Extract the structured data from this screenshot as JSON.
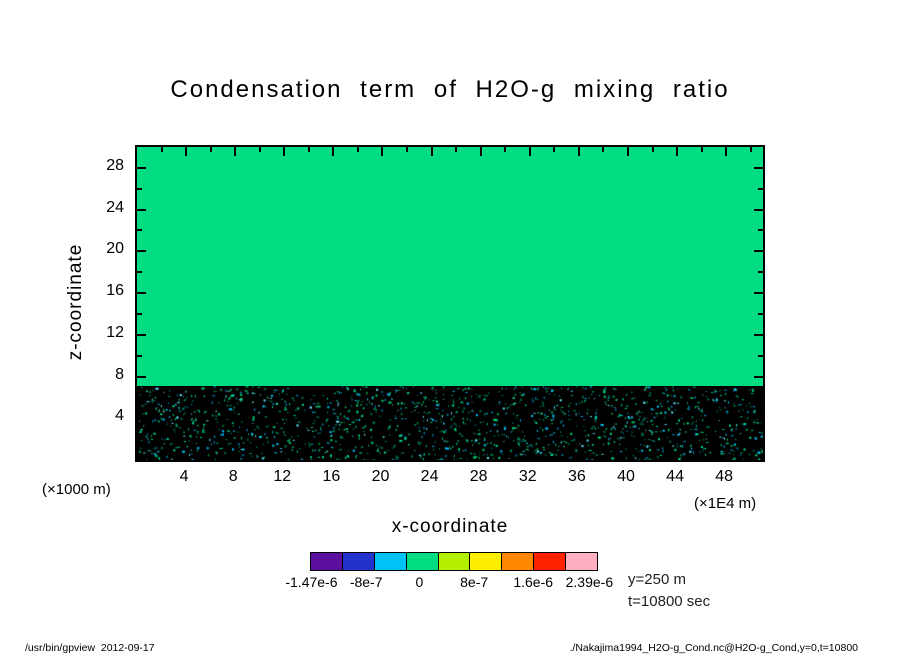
{
  "title": "Condensation term of H2O-g mixing ratio",
  "axes": {
    "x": {
      "label": "x-coordinate",
      "unit": "(×1E4 m)",
      "min": 0,
      "max": 51,
      "ticks": [
        2,
        4,
        6,
        8,
        10,
        12,
        14,
        16,
        18,
        20,
        22,
        24,
        26,
        28,
        30,
        32,
        34,
        36,
        38,
        40,
        42,
        44,
        46,
        48,
        50
      ],
      "labeled": [
        4,
        8,
        12,
        16,
        20,
        24,
        28,
        32,
        36,
        40,
        44,
        48
      ]
    },
    "y": {
      "label": "z-coordinate",
      "unit": "(×1000 m)",
      "min": 0,
      "max": 30,
      "ticks": [
        2,
        4,
        6,
        8,
        10,
        12,
        14,
        16,
        18,
        20,
        22,
        24,
        26,
        28
      ],
      "labeled": [
        4,
        8,
        12,
        16,
        20,
        24,
        28
      ]
    }
  },
  "chart_data": {
    "type": "heatmap",
    "title": "Condensation term of H2O-g mixing ratio",
    "xlabel": "x-coordinate (×1E4 m)",
    "ylabel": "z-coordinate (×1000 m)",
    "x_range": [
      0,
      51
    ],
    "z_range": [
      0,
      30
    ],
    "slice": {
      "y": "y=250 m",
      "t": "t=10800 sec"
    },
    "regions": [
      {
        "z_from": 7,
        "z_to": 30,
        "value": "uniform ≈ 0 (green colorbar level)",
        "color": "#00dc82"
      },
      {
        "z_from": 0,
        "z_to": 7,
        "value": "black band with dense scattered green/cyan speckles (noisy condensation values near surface)",
        "color": "#000000"
      }
    ],
    "colorbar": {
      "tick_labels": [
        "-1.47e-6",
        "-8e-7",
        "0",
        "8e-7",
        "1.6e-6",
        "2.39e-6"
      ],
      "label_positions_pct": [
        0.5,
        19.5,
        38,
        57,
        77.5,
        97
      ],
      "colors": [
        "#5a0f9e",
        "#2233cc",
        "#00c3f5",
        "#00dc82",
        "#b4ee00",
        "#ffee00",
        "#ff8800",
        "#ff2200",
        "#ffb0c0"
      ]
    }
  },
  "annotations": {
    "y_slice": "y=250 m",
    "time": "t=10800 sec"
  },
  "footer": {
    "left": "/usr/bin/gpview  2012-09-17",
    "right": "./Nakajima1994_H2O-g_Cond.nc@H2O-g_Cond,y=0,t=10800"
  },
  "colors": {
    "field_green": "#00dc82",
    "surface_black": "#000000",
    "speckles": [
      "#00dc82",
      "#00dc82",
      "#00dc82",
      "#00c8ff",
      "#00dc82",
      "#00c8ff",
      "#00a060",
      "#66e6ff"
    ]
  }
}
